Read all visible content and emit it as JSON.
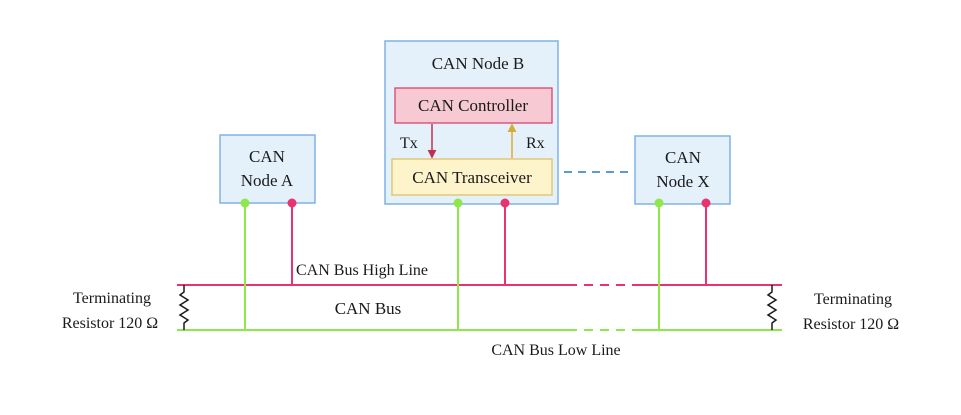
{
  "node_a": {
    "line1": "CAN",
    "line2": "Node A"
  },
  "node_b": {
    "title": "CAN Node B",
    "controller": "CAN Controller",
    "transceiver": "CAN Transceiver",
    "tx": "Tx",
    "rx": "Rx"
  },
  "node_x": {
    "line1": "CAN",
    "line2": "Node X"
  },
  "bus": {
    "high_line": "CAN Bus High Line",
    "name": "CAN Bus",
    "low_line": "CAN Bus Low Line"
  },
  "terminator_left": {
    "line1": "Terminating",
    "line2": "Resistor 120 Ω"
  },
  "terminator_right": {
    "line1": "Terminating",
    "line2": "Resistor 120 Ω"
  },
  "colors": {
    "high_line": "#e8336f",
    "low_line": "#8ee84a",
    "node_border": "#7fb3e6",
    "node_fill": "#e4f1fb",
    "controller_fill": "#f7c9d3",
    "controller_border": "#d9446b",
    "transceiver_fill": "#fdf4cc",
    "transceiver_border": "#dcc166",
    "tx_arrow": "#c1314f",
    "rx_arrow": "#d9aa33",
    "dashed_link": "#5b9bd5"
  }
}
